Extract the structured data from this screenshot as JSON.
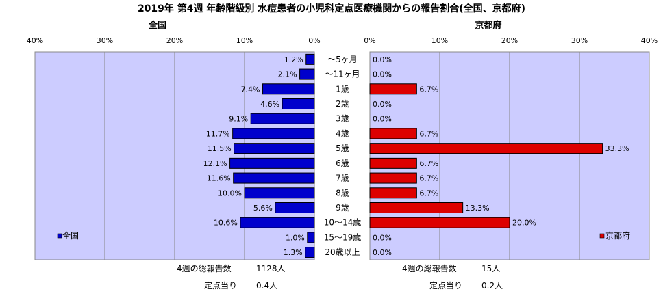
{
  "title": "2019年 第4週 年齢階級別 水痘患者の小児科定点医療機関からの報告割合(全国、京都府)",
  "categories": [
    "～5ヶ月",
    "～11ヶ月",
    "1歳",
    "2歳",
    "3歳",
    "4歳",
    "5歳",
    "6歳",
    "7歳",
    "8歳",
    "9歳",
    "10～14歳",
    "15～19歳",
    "20歳以上"
  ],
  "colors": {
    "national": "#0000cc",
    "kyoto": "#dd0000",
    "plot_bg": "#ccccff",
    "grid": "#888888"
  },
  "chart_data": [
    {
      "type": "bar",
      "orientation": "horizontal",
      "panel_title": "全国",
      "series": [
        {
          "name": "全国",
          "values": [
            1.2,
            2.1,
            7.4,
            4.6,
            9.1,
            11.7,
            11.5,
            12.1,
            11.6,
            10.0,
            5.6,
            10.6,
            1.0,
            1.3
          ]
        }
      ],
      "value_labels": [
        "1.2%",
        "2.1%",
        "7.4%",
        "4.6%",
        "9.1%",
        "11.7%",
        "11.5%",
        "12.1%",
        "11.6%",
        "10.0%",
        "5.6%",
        "10.6%",
        "1.0%",
        "1.3%"
      ],
      "xlim": [
        0,
        40
      ],
      "x_reversed": true,
      "ticks": [
        "40%",
        "30%",
        "20%",
        "10%",
        "0%"
      ],
      "legend": "全国",
      "legend_position": "bottom-left",
      "grid": true
    },
    {
      "type": "bar",
      "orientation": "horizontal",
      "panel_title": "京都府",
      "series": [
        {
          "name": "京都府",
          "values": [
            0.0,
            0.0,
            6.7,
            0.0,
            0.0,
            6.7,
            33.3,
            6.7,
            6.7,
            6.7,
            13.3,
            20.0,
            0.0,
            0.0
          ]
        }
      ],
      "value_labels": [
        "0.0%",
        "0.0%",
        "6.7%",
        "0.0%",
        "0.0%",
        "6.7%",
        "33.3%",
        "6.7%",
        "6.7%",
        "6.7%",
        "13.3%",
        "20.0%",
        "0.0%",
        "0.0%"
      ],
      "xlim": [
        0,
        40
      ],
      "x_reversed": false,
      "ticks": [
        "0%",
        "10%",
        "20%",
        "30%",
        "40%"
      ],
      "legend": "京都府",
      "legend_position": "bottom-right",
      "grid": true
    }
  ],
  "footer": {
    "national": {
      "total_label": "4週の総報告数",
      "total_value": "1128人",
      "per_label": "定点当り",
      "per_value": "0.4人"
    },
    "kyoto": {
      "total_label": "4週の総報告数",
      "total_value": "15人",
      "per_label": "定点当り",
      "per_value": "0.2人"
    }
  }
}
